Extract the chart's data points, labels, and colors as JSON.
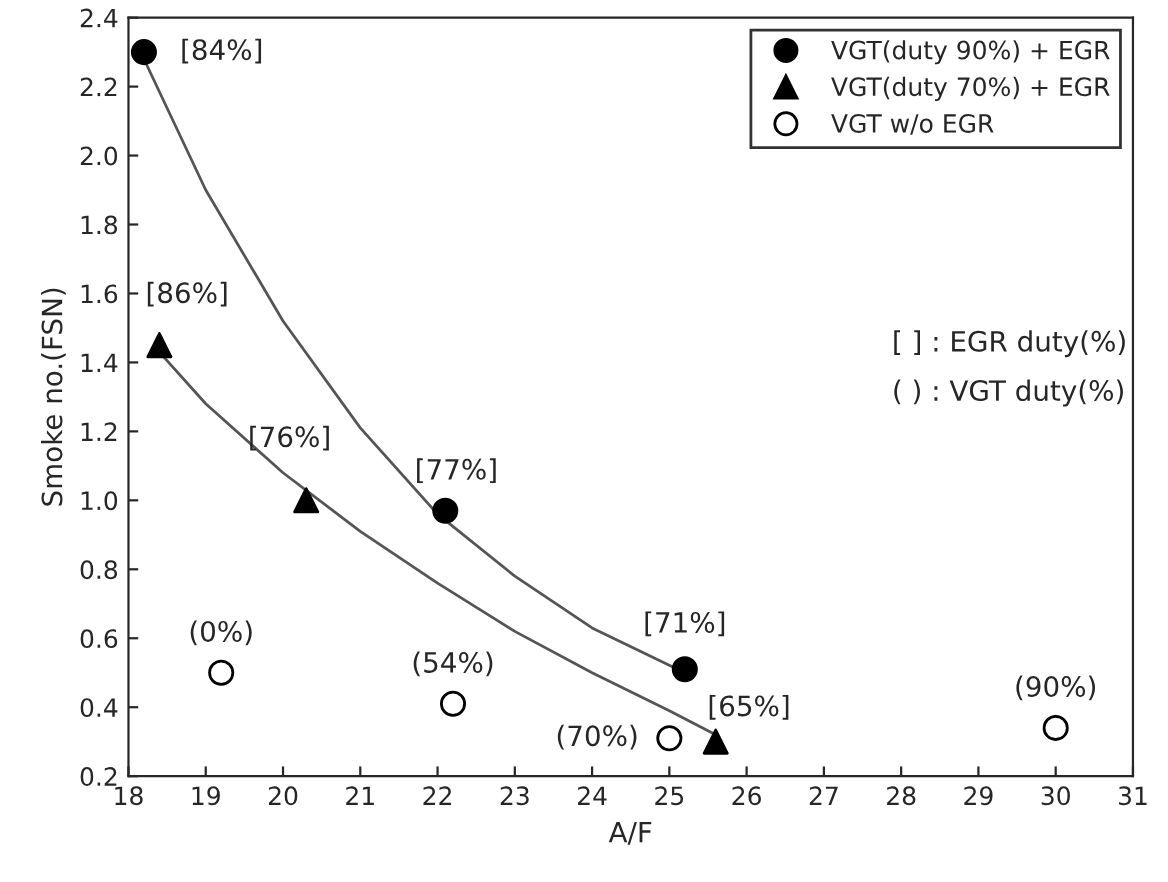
{
  "chart_data": {
    "type": "scatter",
    "xlabel": "A/F",
    "ylabel": "Smoke no.(FSN)",
    "xlim": [
      18,
      31
    ],
    "xticks": [
      18,
      19,
      20,
      21,
      22,
      23,
      24,
      25,
      26,
      27,
      28,
      29,
      30,
      31
    ],
    "ylim": [
      0.2,
      2.4
    ],
    "yticks": [
      0.2,
      0.4,
      0.6,
      0.8,
      {
        "value": 1,
        "label": "1.0"
      },
      1.2,
      1.4,
      1.6,
      1.8,
      {
        "value": 2,
        "label": "2.0"
      },
      2.2,
      2.4
    ],
    "grid": false,
    "legend": "top right",
    "series": [
      {
        "name": "VGT(duty 90%) + EGR",
        "marker": "circle",
        "color": "#000000",
        "x": [
          18.2,
          22.1,
          25.2
        ],
        "values": [
          2.3,
          0.97,
          0.51
        ]
      },
      {
        "name": "VGT(duty 70%) + EGR",
        "marker": "triangle",
        "color": "#000000",
        "x": [
          18.4,
          20.3,
          25.6
        ],
        "values": [
          1.45,
          1.0,
          0.3
        ]
      },
      {
        "name": "VGT w/o EGR",
        "marker": "circle",
        "color": "#ffffff",
        "x": [
          19.2,
          22.2,
          25.0,
          30.0
        ],
        "values": [
          0.5,
          0.41,
          0.31,
          0.34
        ]
      },
      {
        "type": "line",
        "color": "#555555",
        "marker": "none",
        "x": [
          18.2,
          19,
          20,
          21,
          22,
          23,
          24,
          25.2
        ],
        "values": [
          2.28,
          1.9,
          1.52,
          1.21,
          0.96,
          0.78,
          0.63,
          0.5
        ]
      },
      {
        "type": "line",
        "color": "#555555",
        "marker": "none",
        "x": [
          18.4,
          19,
          20,
          21,
          22,
          23,
          24,
          25,
          25.6
        ],
        "values": [
          1.43,
          1.28,
          1.08,
          0.91,
          0.76,
          0.62,
          0.5,
          0.39,
          0.32
        ]
      }
    ],
    "annotations": [
      {
        "text": "[84%]",
        "x": 18.2,
        "y": 2.3
      },
      {
        "text": "[77%]",
        "x": 22.1,
        "y": 0.97
      },
      {
        "text": "[71%]",
        "x": 25.2,
        "y": 0.51
      },
      {
        "text": "[86%]",
        "x": 18.4,
        "y": 1.45
      },
      {
        "text": "[76%]",
        "x": 20.3,
        "y": 1.0
      },
      {
        "text": "[65%]",
        "x": 25.6,
        "y": 0.3
      },
      {
        "text": "(0%)",
        "x": 19.2,
        "y": 0.5
      },
      {
        "text": "(54%)",
        "x": 22.2,
        "y": 0.41
      },
      {
        "text": "(70%)",
        "x": 25.0,
        "y": 0.31
      },
      {
        "text": "(90%)",
        "x": 30.0,
        "y": 0.34
      },
      "[ ] : EGR duty(%)",
      "( ) : VGT duty(%)"
    ]
  }
}
